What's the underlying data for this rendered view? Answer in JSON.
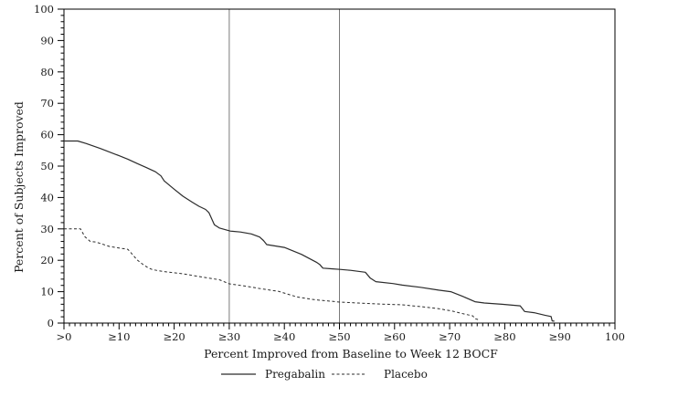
{
  "chart_data": {
    "type": "line",
    "title": "",
    "xlabel": "Percent Improved from Baseline to Week 12 BOCF",
    "ylabel": "Percent of Subjects Improved",
    "xlim": [
      0,
      100
    ],
    "ylim": [
      0,
      100
    ],
    "grid": false,
    "legend_position": "bottom-center",
    "x_major_ticks": [
      0,
      10,
      20,
      30,
      40,
      50,
      60,
      70,
      80,
      90,
      100
    ],
    "x_tick_labels": [
      ">0",
      "≥10",
      "≥20",
      "≥30",
      "≥40",
      "≥50",
      "≥60",
      "≥70",
      "≥80",
      "≥90",
      "100"
    ],
    "y_major_ticks": [
      0,
      10,
      20,
      30,
      40,
      50,
      60,
      70,
      80,
      90,
      100
    ],
    "y_tick_labels": [
      "0",
      "10",
      "20",
      "30",
      "40",
      "50",
      "60",
      "70",
      "80",
      "90",
      "100"
    ],
    "x_minor_step": 1,
    "y_minor_step": 2,
    "reference_lines_x": [
      30,
      50
    ],
    "axis_color": "#000000",
    "reference_line_color": "#7a7a7a",
    "line_color": "#2b2b2b",
    "series": [
      {
        "name": "Pregabalin",
        "style": "solid",
        "points": [
          [
            0,
            58
          ],
          [
            2.5,
            58
          ],
          [
            4,
            57.2
          ],
          [
            6.6,
            55.6
          ],
          [
            10,
            53.3
          ],
          [
            11.6,
            52.2
          ],
          [
            13.3,
            50.8
          ],
          [
            14.9,
            49.6
          ],
          [
            16.6,
            48.2
          ],
          [
            17.6,
            46.9
          ],
          [
            18.2,
            45.3
          ],
          [
            19.9,
            42.8
          ],
          [
            21.6,
            40.4
          ],
          [
            23.2,
            38.6
          ],
          [
            24.5,
            37.2
          ],
          [
            25.7,
            36.2
          ],
          [
            26.3,
            35.2
          ],
          [
            27.3,
            31.3
          ],
          [
            28.2,
            30.3
          ],
          [
            30.2,
            29.3
          ],
          [
            32,
            29
          ],
          [
            34,
            28.4
          ],
          [
            35.5,
            27.4
          ],
          [
            36.2,
            26.3
          ],
          [
            36.8,
            25
          ],
          [
            40,
            24.1
          ],
          [
            43.1,
            21.9
          ],
          [
            45.8,
            19.4
          ],
          [
            46.4,
            18.7
          ],
          [
            47,
            17.5
          ],
          [
            48.5,
            17.3
          ],
          [
            50.1,
            17.1
          ],
          [
            52,
            16.8
          ],
          [
            54.7,
            16.2
          ],
          [
            55.6,
            14.3
          ],
          [
            56.6,
            13.2
          ],
          [
            59.7,
            12.6
          ],
          [
            61.4,
            12.1
          ],
          [
            64.7,
            11.4
          ],
          [
            68,
            10.5
          ],
          [
            70.2,
            10
          ],
          [
            72.4,
            8.5
          ],
          [
            74.6,
            6.8
          ],
          [
            76.3,
            6.4
          ],
          [
            79.5,
            6
          ],
          [
            82.8,
            5.5
          ],
          [
            83.6,
            3.7
          ],
          [
            85.3,
            3.3
          ],
          [
            87.3,
            2.5
          ],
          [
            88.4,
            2.1
          ],
          [
            88.6,
            0.7
          ],
          [
            89,
            0.6
          ]
        ]
      },
      {
        "name": "Placebo",
        "style": "dashed",
        "points": [
          [
            0,
            30
          ],
          [
            3,
            30
          ],
          [
            3.8,
            27.5
          ],
          [
            4.8,
            26
          ],
          [
            5.8,
            25.8
          ],
          [
            8.3,
            24.4
          ],
          [
            11.6,
            23.5
          ],
          [
            12.1,
            22.5
          ],
          [
            13.3,
            20.1
          ],
          [
            14.4,
            18.6
          ],
          [
            15.3,
            17.6
          ],
          [
            16.1,
            17
          ],
          [
            18.2,
            16.4
          ],
          [
            21.6,
            15.7
          ],
          [
            24.9,
            14.7
          ],
          [
            28.2,
            13.8
          ],
          [
            30,
            12.5
          ],
          [
            32.8,
            11.8
          ],
          [
            36.2,
            10.8
          ],
          [
            39,
            10.1
          ],
          [
            42.3,
            8.3
          ],
          [
            45.6,
            7.4
          ],
          [
            48.9,
            6.9
          ],
          [
            50,
            6.7
          ],
          [
            53.4,
            6.4
          ],
          [
            56.7,
            6.1
          ],
          [
            61.4,
            5.8
          ],
          [
            65,
            5.2
          ],
          [
            68,
            4.6
          ],
          [
            70.5,
            3.8
          ],
          [
            72.6,
            2.9
          ],
          [
            74.2,
            2.3
          ],
          [
            74.6,
            1.4
          ],
          [
            75.2,
            1.1
          ]
        ]
      }
    ]
  }
}
